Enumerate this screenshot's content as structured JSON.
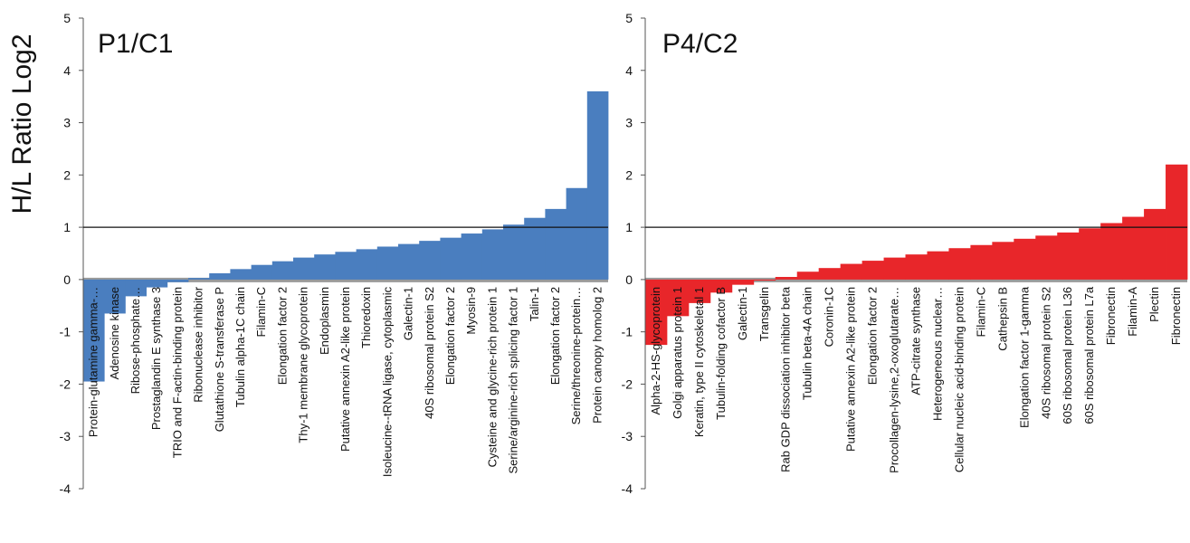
{
  "chart_data": [
    {
      "type": "bar",
      "title": "P1/C1",
      "ylabel": "H/L Ratio Log2",
      "ylim": [
        -4,
        5
      ],
      "yticks": [
        -4,
        -3,
        -2,
        -1,
        0,
        1,
        2,
        3,
        4,
        5
      ],
      "threshold": 1,
      "color": "#4a7ebf",
      "neutral_color": "#9a9a9a",
      "categories": [
        "Protein-glutamine gamma-…",
        "Adenosine kinase",
        "Ribose-phosphate…",
        "Prostaglandin E synthase 3",
        "TRIO and F-actin-binding protein",
        "Ribonuclease inhibitor",
        "Glutathione S-transferase P",
        "Tubulin alpha-1C chain",
        "Filamin-C",
        "Elongation factor 2",
        "Thy-1 membrane glycoprotein",
        "Endoplasmin",
        "Putative annexin A2-like protein",
        "Thioredoxin",
        "Isoleucine--tRNA ligase, cytoplasmic",
        "Galectin-1",
        "40S ribosomal protein S2",
        "Elongation factor 2",
        "Myosin-9",
        "Cysteine and glycine-rich protein 1",
        "Serine/arginine-rich splicing factor 1",
        "Talin-1",
        "Elongation factor 2",
        "Serine/threonine-protein…",
        "Protein canopy homolog 2"
      ],
      "values": [
        -1.95,
        -0.65,
        -0.32,
        -0.15,
        -0.05,
        0.03,
        0.12,
        0.2,
        0.28,
        0.35,
        0.42,
        0.48,
        0.53,
        0.58,
        0.63,
        0.68,
        0.74,
        0.8,
        0.88,
        0.96,
        1.05,
        1.18,
        1.35,
        1.75,
        3.6
      ]
    },
    {
      "type": "bar",
      "title": "P4/C2",
      "ylim": [
        -4,
        5
      ],
      "yticks": [
        -4,
        -3,
        -2,
        -1,
        0,
        1,
        2,
        3,
        4,
        5
      ],
      "threshold": 1,
      "color": "#e8262a",
      "neutral_color": "#9a9a9a",
      "categories": [
        "Alpha-2-HS-glycoprotein",
        "Golgi apparatus protein 1",
        "Keratin, type II cytoskeletal 1",
        "Tubulin-folding cofactor B",
        "Galectin-1",
        "Transgelin",
        "Rab GDP dissociation inhibitor beta",
        "Tubulin beta-4A chain",
        "Coronin-1C",
        "Putative annexin A2-like protein",
        "Elongation factor 2",
        "Procollagen-lysine,2-oxoglutarate…",
        "ATP-citrate synthase",
        "Heterogeneous nuclear…",
        "Cellular nucleic acid-binding protein",
        "Filamin-C",
        "Cathepsin B",
        "Elongation factor 1-gamma",
        "40S ribosomal protein S2",
        "60S ribosomal protein L36",
        "60S ribosomal protein L7a",
        "Fibronectin",
        "Filamin-A",
        "Plectin",
        "Fibronectin"
      ],
      "values": [
        -1.25,
        -0.7,
        -0.45,
        -0.25,
        -0.1,
        -0.02,
        0.05,
        0.15,
        0.22,
        0.3,
        0.36,
        0.42,
        0.48,
        0.54,
        0.6,
        0.66,
        0.72,
        0.78,
        0.84,
        0.9,
        0.98,
        1.08,
        1.2,
        1.35,
        2.2
      ]
    }
  ]
}
